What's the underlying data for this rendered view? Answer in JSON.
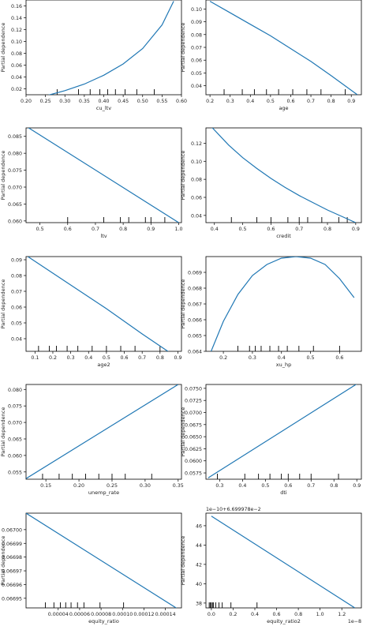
{
  "chart_data": [
    {
      "type": "line",
      "title": "",
      "xlabel": "cu_ltv",
      "ylabel": "Partial dependence",
      "xlim": [
        0.2,
        0.6
      ],
      "ylim": [
        0.01,
        0.17
      ],
      "xticks": [
        0.2,
        0.25,
        0.3,
        0.35,
        0.4,
        0.45,
        0.5,
        0.55,
        0.6
      ],
      "xtick_labels": [
        "0.20",
        "0.25",
        "0.30",
        "0.35",
        "0.40",
        "0.45",
        "0.50",
        "0.55",
        "0.60"
      ],
      "yticks": [
        0.02,
        0.04,
        0.06,
        0.08,
        0.1,
        0.12,
        0.14,
        0.16
      ],
      "ytick_labels": [
        "0.02",
        "0.04",
        "0.06",
        "0.08",
        "0.10",
        "0.12",
        "0.14",
        "0.16"
      ],
      "x": [
        0.2,
        0.25,
        0.3,
        0.35,
        0.4,
        0.45,
        0.5,
        0.55,
        0.58
      ],
      "y": [
        0.003,
        0.008,
        0.017,
        0.028,
        0.043,
        0.062,
        0.088,
        0.128,
        0.168
      ],
      "rug": [
        0.28,
        0.335,
        0.365,
        0.39,
        0.41,
        0.43,
        0.455,
        0.485,
        0.53
      ],
      "offset_label": ""
    },
    {
      "type": "line",
      "title": "",
      "xlabel": "age",
      "ylabel": "Partial dependence",
      "xlim": [
        0.18,
        0.95
      ],
      "ylim": [
        0.033,
        0.107
      ],
      "xticks": [
        0.2,
        0.3,
        0.4,
        0.5,
        0.6,
        0.7,
        0.8,
        0.9
      ],
      "xtick_labels": [
        "0.2",
        "0.3",
        "0.4",
        "0.5",
        "0.6",
        "0.7",
        "0.8",
        "0.9"
      ],
      "yticks": [
        0.04,
        0.05,
        0.06,
        0.07,
        0.08,
        0.09,
        0.1
      ],
      "ytick_labels": [
        "0.04",
        "0.05",
        "0.06",
        "0.07",
        "0.08",
        "0.09",
        "0.10"
      ],
      "x": [
        0.2,
        0.3,
        0.4,
        0.5,
        0.6,
        0.7,
        0.8,
        0.93
      ],
      "y": [
        0.106,
        0.097,
        0.088,
        0.079,
        0.069,
        0.059,
        0.048,
        0.033
      ],
      "rug": [
        0.27,
        0.36,
        0.42,
        0.48,
        0.54,
        0.61,
        0.68,
        0.75,
        0.87
      ],
      "offset_label": ""
    },
    {
      "type": "line",
      "title": "",
      "xlabel": "ltv",
      "ylabel": "Partial dependence",
      "xlim": [
        0.45,
        1.01
      ],
      "ylim": [
        0.0595,
        0.0875
      ],
      "xticks": [
        0.5,
        0.6,
        0.7,
        0.8,
        0.9,
        1.0
      ],
      "xtick_labels": [
        "0.5",
        "0.6",
        "0.7",
        "0.8",
        "0.9",
        "1.0"
      ],
      "yticks": [
        0.06,
        0.065,
        0.07,
        0.075,
        0.08,
        0.085
      ],
      "ytick_labels": [
        "0.060",
        "0.065",
        "0.070",
        "0.075",
        "0.080",
        "0.085"
      ],
      "x": [
        0.45,
        1.0
      ],
      "y": [
        0.088,
        0.0595
      ],
      "rug": [
        0.6,
        0.73,
        0.79,
        0.82,
        0.88,
        0.9,
        0.95
      ],
      "offset_label": ""
    },
    {
      "type": "line",
      "title": "",
      "xlabel": "credit",
      "ylabel": "Partial dependence",
      "xlim": [
        0.37,
        0.92
      ],
      "ylim": [
        0.032,
        0.137
      ],
      "xticks": [
        0.4,
        0.5,
        0.6,
        0.7,
        0.8,
        0.9
      ],
      "xtick_labels": [
        "0.4",
        "0.5",
        "0.6",
        "0.7",
        "0.8",
        "0.9"
      ],
      "yticks": [
        0.04,
        0.06,
        0.08,
        0.1,
        0.12
      ],
      "ytick_labels": [
        "0.04",
        "0.06",
        "0.08",
        "0.10",
        "0.12"
      ],
      "x": [
        0.39,
        0.45,
        0.5,
        0.55,
        0.6,
        0.65,
        0.7,
        0.75,
        0.8,
        0.85,
        0.9
      ],
      "y": [
        0.138,
        0.118,
        0.104,
        0.092,
        0.081,
        0.071,
        0.062,
        0.054,
        0.046,
        0.039,
        0.032
      ],
      "rug": [
        0.46,
        0.55,
        0.6,
        0.66,
        0.7,
        0.73,
        0.78,
        0.84,
        0.87
      ],
      "offset_label": ""
    },
    {
      "type": "line",
      "title": "",
      "xlabel": "age2",
      "ylabel": "Partial dependence",
      "xlim": [
        0.05,
        0.92
      ],
      "ylim": [
        0.032,
        0.092
      ],
      "xticks": [
        0.1,
        0.2,
        0.3,
        0.4,
        0.5,
        0.6,
        0.7,
        0.8,
        0.9
      ],
      "xtick_labels": [
        "0.1",
        "0.2",
        "0.3",
        "0.4",
        "0.5",
        "0.6",
        "0.7",
        "0.8",
        "0.9"
      ],
      "yticks": [
        0.04,
        0.05,
        0.06,
        0.07,
        0.08,
        0.09
      ],
      "ytick_labels": [
        "0.04",
        "0.05",
        "0.06",
        "0.07",
        "0.08",
        "0.09"
      ],
      "x": [
        0.06,
        0.3,
        0.5,
        0.7,
        0.87
      ],
      "y": [
        0.092,
        0.074,
        0.059,
        0.043,
        0.03
      ],
      "rug": [
        0.12,
        0.18,
        0.22,
        0.28,
        0.34,
        0.42,
        0.5,
        0.58,
        0.66,
        0.8
      ],
      "offset_label": ""
    },
    {
      "type": "line",
      "title": "",
      "xlabel": "xu_hp",
      "ylabel": "Partial dependence",
      "xlim": [
        0.14,
        0.675
      ],
      "ylim": [
        0.064,
        0.07
      ],
      "xticks": [
        0.2,
        0.3,
        0.4,
        0.5,
        0.6
      ],
      "xtick_labels": [
        "0.2",
        "0.3",
        "0.4",
        "0.5",
        "0.6"
      ],
      "yticks": [
        0.064,
        0.065,
        0.066,
        0.067,
        0.068,
        0.069
      ],
      "ytick_labels": [
        "0.064",
        "0.065",
        "0.066",
        "0.067",
        "0.068",
        "0.069"
      ],
      "x": [
        0.14,
        0.2,
        0.25,
        0.3,
        0.35,
        0.4,
        0.45,
        0.5,
        0.55,
        0.6,
        0.65
      ],
      "y": [
        0.0632,
        0.0659,
        0.0676,
        0.0688,
        0.0695,
        0.0699,
        0.07,
        0.0699,
        0.0695,
        0.0686,
        0.0674
      ],
      "rug": [
        0.25,
        0.29,
        0.31,
        0.33,
        0.36,
        0.39,
        0.42,
        0.46,
        0.51,
        0.6
      ],
      "offset_label": ""
    },
    {
      "type": "line",
      "title": "",
      "xlabel": "unemp_rate",
      "ylabel": "Partial dependence",
      "xlim": [
        0.12,
        0.355
      ],
      "ylim": [
        0.0528,
        0.0815
      ],
      "xticks": [
        0.15,
        0.2,
        0.25,
        0.3,
        0.35
      ],
      "xtick_labels": [
        "0.15",
        "0.20",
        "0.25",
        "0.30",
        "0.35"
      ],
      "yticks": [
        0.055,
        0.06,
        0.065,
        0.07,
        0.075,
        0.08
      ],
      "ytick_labels": [
        "0.055",
        "0.060",
        "0.065",
        "0.070",
        "0.075",
        "0.080"
      ],
      "x": [
        0.12,
        0.35
      ],
      "y": [
        0.053,
        0.0815
      ],
      "rug": [
        0.145,
        0.17,
        0.19,
        0.21,
        0.23,
        0.25,
        0.27,
        0.31
      ],
      "offset_label": ""
    },
    {
      "type": "line",
      "title": "",
      "xlabel": "dti",
      "ylabel": "Partial dependence",
      "xlim": [
        0.24,
        0.92
      ],
      "ylim": [
        0.0562,
        0.0758
      ],
      "xticks": [
        0.3,
        0.4,
        0.5,
        0.6,
        0.7,
        0.8,
        0.9
      ],
      "xtick_labels": [
        "0.3",
        "0.4",
        "0.5",
        "0.6",
        "0.7",
        "0.8",
        "0.9"
      ],
      "yticks": [
        0.0575,
        0.06,
        0.0625,
        0.065,
        0.0675,
        0.07,
        0.0725,
        0.075
      ],
      "ytick_labels": [
        "0.0575",
        "0.0600",
        "0.0625",
        "0.0650",
        "0.0675",
        "0.0700",
        "0.0725",
        "0.0750"
      ],
      "x": [
        0.25,
        0.92
      ],
      "y": [
        0.0565,
        0.0765
      ],
      "rug": [
        0.29,
        0.41,
        0.47,
        0.52,
        0.57,
        0.6,
        0.65,
        0.7,
        0.82
      ],
      "offset_label": ""
    },
    {
      "type": "line",
      "title": "",
      "xlabel": "equity_ratio",
      "ylabel": "Partial dependence",
      "xlim": [
        1e-05,
        0.000155
      ],
      "ylim": [
        0.066943,
        0.067012
      ],
      "xticks": [
        4e-05,
        6e-05,
        8e-05,
        0.0001,
        0.00012,
        0.00014
      ],
      "xtick_labels": [
        "0.00004",
        "0.00006",
        "0.00008",
        "0.00010",
        "0.00012",
        "0.00014"
      ],
      "yticks": [
        0.06695,
        0.06696,
        0.06697,
        0.06698,
        0.06699,
        0.067
      ],
      "ytick_labels": [
        "0.06695",
        "0.06696",
        "0.06697",
        "0.06698",
        "0.06699",
        "0.06700"
      ],
      "x": [
        1e-05,
        0.000152
      ],
      "y": [
        0.067012,
        0.066942
      ],
      "rug": [
        2.8e-05,
        3.6e-05,
        4.2e-05,
        4.7e-05,
        5.2e-05,
        5.8e-05,
        6.4e-05,
        7.9e-05,
        0.000101
      ],
      "offset_label": ""
    },
    {
      "type": "line",
      "title": "",
      "xlabel": "equity_ratio2",
      "ylabel": "Partial dependence",
      "xlim": [
        -0.05,
        1.38
      ],
      "ylim": [
        37.5,
        47.3
      ],
      "xticks": [
        0.0,
        0.2,
        0.4,
        0.6,
        0.8,
        1.0,
        1.2
      ],
      "xtick_labels": [
        "0.0",
        "0.2",
        "0.4",
        "0.6",
        "0.8",
        "1.0",
        "1.2"
      ],
      "yticks": [
        38,
        40,
        42,
        44,
        46
      ],
      "ytick_labels": [
        "38",
        "40",
        "42",
        "44",
        "46"
      ],
      "x": [
        0.0,
        1.32
      ],
      "y": [
        47.0,
        37.5
      ],
      "rug": [
        -0.02,
        -0.01,
        0.0,
        0.01,
        0.02,
        0.04,
        0.07,
        0.1,
        0.18,
        0.42
      ],
      "offset_label": "1e−10+6.699978e−2",
      "x_offset_label": "1e−8"
    }
  ],
  "colors": {
    "line": "#1f77b4",
    "axis": "#000000",
    "text": "#222222"
  }
}
